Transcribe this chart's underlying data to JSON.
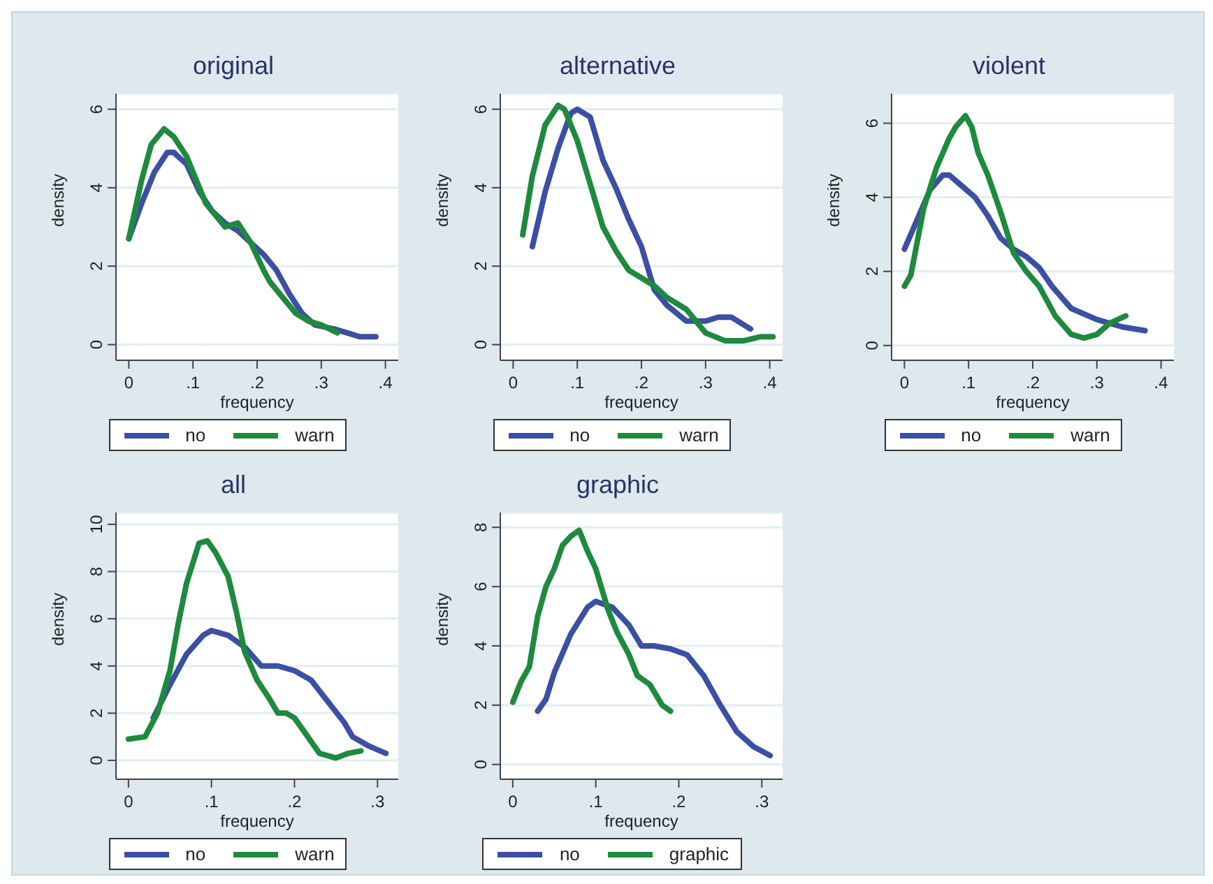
{
  "chart_data": [
    {
      "type": "line",
      "title": "original",
      "xlabel": "frequency",
      "ylabel": "density",
      "xlim": [
        -0.02,
        0.42
      ],
      "ylim": [
        -0.4,
        6.4
      ],
      "xticks": [
        {
          "value": 0,
          "label": "0"
        },
        {
          "value": 0.1,
          "label": ".1"
        },
        {
          "value": 0.2,
          "label": ".2"
        },
        {
          "value": 0.3,
          "label": ".3"
        },
        {
          "value": 0.4,
          "label": ".4"
        }
      ],
      "yticks": [
        0,
        2,
        4,
        6
      ],
      "grid": "y",
      "legend": "bottom",
      "marker": "none",
      "line_style": "solid",
      "series": [
        {
          "name": "no",
          "color": "#3b4fa3",
          "x": [
            0,
            0.02,
            0.04,
            0.06,
            0.07,
            0.09,
            0.11,
            0.13,
            0.15,
            0.17,
            0.19,
            0.21,
            0.23,
            0.25,
            0.27,
            0.29,
            0.32,
            0.34,
            0.36,
            0.385
          ],
          "values": [
            2.7,
            3.6,
            4.4,
            4.9,
            4.9,
            4.6,
            3.9,
            3.4,
            3.1,
            2.9,
            2.6,
            2.3,
            1.9,
            1.3,
            0.8,
            0.5,
            0.4,
            0.3,
            0.2,
            0.2
          ]
        },
        {
          "name": "warn",
          "color": "#1e8a3e",
          "x": [
            0,
            0.02,
            0.035,
            0.055,
            0.07,
            0.09,
            0.11,
            0.12,
            0.14,
            0.15,
            0.17,
            0.19,
            0.21,
            0.22,
            0.24,
            0.26,
            0.28,
            0.3,
            0.325
          ],
          "values": [
            2.7,
            4.2,
            5.1,
            5.5,
            5.3,
            4.8,
            4.0,
            3.6,
            3.2,
            3.0,
            3.1,
            2.6,
            1.9,
            1.6,
            1.2,
            0.8,
            0.6,
            0.5,
            0.3
          ]
        }
      ]
    },
    {
      "type": "line",
      "title": "alternative",
      "xlabel": "frequency",
      "ylabel": "density",
      "xlim": [
        -0.02,
        0.42
      ],
      "ylim": [
        -0.4,
        6.4
      ],
      "xticks": [
        {
          "value": 0,
          "label": "0"
        },
        {
          "value": 0.1,
          "label": ".1"
        },
        {
          "value": 0.2,
          "label": ".2"
        },
        {
          "value": 0.3,
          "label": ".3"
        },
        {
          "value": 0.4,
          "label": ".4"
        }
      ],
      "yticks": [
        0,
        2,
        4,
        6
      ],
      "grid": "y",
      "legend": "bottom",
      "marker": "none",
      "line_style": "solid",
      "series": [
        {
          "name": "no",
          "color": "#3b4fa3",
          "x": [
            0.03,
            0.05,
            0.07,
            0.09,
            0.1,
            0.12,
            0.14,
            0.16,
            0.18,
            0.2,
            0.22,
            0.24,
            0.27,
            0.3,
            0.32,
            0.34,
            0.37
          ],
          "values": [
            2.5,
            3.9,
            5.0,
            5.9,
            6.0,
            5.8,
            4.7,
            4.0,
            3.2,
            2.5,
            1.4,
            1.0,
            0.6,
            0.6,
            0.7,
            0.7,
            0.4
          ]
        },
        {
          "name": "warn",
          "color": "#1e8a3e",
          "x": [
            0.015,
            0.03,
            0.05,
            0.07,
            0.08,
            0.1,
            0.12,
            0.14,
            0.16,
            0.18,
            0.2,
            0.22,
            0.24,
            0.27,
            0.3,
            0.33,
            0.36,
            0.385,
            0.405
          ],
          "values": [
            2.8,
            4.3,
            5.6,
            6.1,
            6.0,
            5.2,
            4.1,
            3.0,
            2.4,
            1.9,
            1.7,
            1.5,
            1.2,
            0.9,
            0.3,
            0.1,
            0.1,
            0.2,
            0.2
          ]
        }
      ]
    },
    {
      "type": "line",
      "title": "violent",
      "xlabel": "frequency",
      "ylabel": "density",
      "xlim": [
        -0.02,
        0.42
      ],
      "ylim": [
        -0.4,
        6.8
      ],
      "xticks": [
        {
          "value": 0,
          "label": "0"
        },
        {
          "value": 0.1,
          "label": ".1"
        },
        {
          "value": 0.2,
          "label": ".2"
        },
        {
          "value": 0.3,
          "label": ".3"
        },
        {
          "value": 0.4,
          "label": ".4"
        }
      ],
      "yticks": [
        0,
        2,
        4,
        6
      ],
      "grid": "y",
      "legend": "bottom",
      "marker": "none",
      "line_style": "solid",
      "series": [
        {
          "name": "no",
          "color": "#3b4fa3",
          "x": [
            0,
            0.02,
            0.04,
            0.06,
            0.07,
            0.09,
            0.11,
            0.13,
            0.15,
            0.17,
            0.19,
            0.21,
            0.23,
            0.26,
            0.3,
            0.34,
            0.375
          ],
          "values": [
            2.6,
            3.4,
            4.2,
            4.6,
            4.6,
            4.3,
            4.0,
            3.5,
            2.9,
            2.6,
            2.4,
            2.1,
            1.6,
            1.0,
            0.7,
            0.5,
            0.4
          ]
        },
        {
          "name": "warn",
          "color": "#1e8a3e",
          "x": [
            0,
            0.01,
            0.03,
            0.05,
            0.07,
            0.08,
            0.095,
            0.105,
            0.115,
            0.13,
            0.15,
            0.17,
            0.19,
            0.21,
            0.235,
            0.26,
            0.28,
            0.3,
            0.32,
            0.345
          ],
          "values": [
            1.6,
            1.9,
            3.7,
            4.8,
            5.6,
            5.9,
            6.2,
            5.9,
            5.2,
            4.6,
            3.6,
            2.5,
            2.0,
            1.6,
            0.8,
            0.3,
            0.2,
            0.3,
            0.6,
            0.8
          ]
        }
      ]
    },
    {
      "type": "line",
      "title": "all",
      "xlabel": "frequency",
      "ylabel": "density",
      "xlim": [
        -0.015,
        0.325
      ],
      "ylim": [
        -0.8,
        10.5
      ],
      "xticks": [
        {
          "value": 0,
          "label": "0"
        },
        {
          "value": 0.1,
          "label": ".1"
        },
        {
          "value": 0.2,
          "label": ".2"
        },
        {
          "value": 0.3,
          "label": ".3"
        }
      ],
      "yticks": [
        0,
        2,
        4,
        6,
        8,
        10
      ],
      "grid": "y",
      "legend": "bottom",
      "marker": "none",
      "line_style": "solid",
      "series": [
        {
          "name": "no",
          "color": "#3b4fa3",
          "x": [
            0.03,
            0.05,
            0.07,
            0.09,
            0.1,
            0.12,
            0.14,
            0.16,
            0.18,
            0.2,
            0.22,
            0.24,
            0.26,
            0.27,
            0.29,
            0.31
          ],
          "values": [
            1.8,
            3.2,
            4.5,
            5.3,
            5.5,
            5.3,
            4.8,
            4.0,
            4.0,
            3.8,
            3.4,
            2.5,
            1.6,
            1.0,
            0.6,
            0.3
          ]
        },
        {
          "name": "warn",
          "color": "#1e8a3e",
          "x": [
            0,
            0.02,
            0.035,
            0.05,
            0.06,
            0.07,
            0.085,
            0.095,
            0.105,
            0.12,
            0.13,
            0.14,
            0.155,
            0.17,
            0.18,
            0.19,
            0.2,
            0.22,
            0.23,
            0.25,
            0.265,
            0.28
          ],
          "values": [
            0.9,
            1.0,
            2.0,
            3.8,
            5.8,
            7.5,
            9.2,
            9.3,
            8.8,
            7.8,
            6.3,
            4.6,
            3.4,
            2.6,
            2.0,
            2.0,
            1.8,
            0.8,
            0.3,
            0.1,
            0.3,
            0.4
          ]
        }
      ]
    },
    {
      "type": "line",
      "title": "graphic",
      "xlabel": "frequency",
      "ylabel": "density",
      "xlim": [
        -0.015,
        0.325
      ],
      "ylim": [
        -0.5,
        8.5
      ],
      "xticks": [
        {
          "value": 0,
          "label": "0"
        },
        {
          "value": 0.1,
          "label": ".1"
        },
        {
          "value": 0.2,
          "label": ".2"
        },
        {
          "value": 0.3,
          "label": ".3"
        }
      ],
      "yticks": [
        0,
        2,
        4,
        6,
        8
      ],
      "grid": "y",
      "legend": "bottom",
      "marker": "none",
      "line_style": "solid",
      "series": [
        {
          "name": "no",
          "color": "#3b4fa3",
          "x": [
            0.03,
            0.04,
            0.05,
            0.07,
            0.09,
            0.1,
            0.12,
            0.14,
            0.155,
            0.17,
            0.19,
            0.21,
            0.23,
            0.25,
            0.27,
            0.29,
            0.31
          ],
          "values": [
            1.8,
            2.2,
            3.1,
            4.4,
            5.3,
            5.5,
            5.3,
            4.7,
            4.0,
            4.0,
            3.9,
            3.7,
            3.0,
            2.0,
            1.1,
            0.6,
            0.3
          ]
        },
        {
          "name": "graphic",
          "color": "#1e8a3e",
          "x": [
            0,
            0.01,
            0.02,
            0.03,
            0.04,
            0.05,
            0.06,
            0.07,
            0.08,
            0.09,
            0.1,
            0.115,
            0.125,
            0.14,
            0.15,
            0.165,
            0.18,
            0.19
          ],
          "values": [
            2.1,
            2.8,
            3.3,
            5.0,
            6.0,
            6.6,
            7.4,
            7.7,
            7.9,
            7.2,
            6.6,
            5.2,
            4.5,
            3.7,
            3.0,
            2.7,
            2.0,
            1.8
          ]
        }
      ]
    }
  ]
}
